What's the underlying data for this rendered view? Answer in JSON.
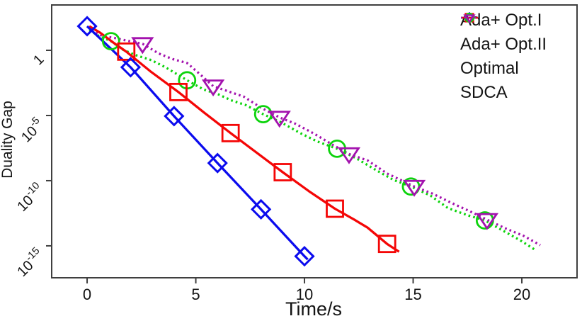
{
  "figure": {
    "background": "#ffffff",
    "frame_color": "#3f3f3f",
    "text_color": "#141414"
  },
  "chart_data": {
    "type": "line",
    "title": "",
    "xlabel": "Time/s",
    "ylabel": "Duality Gap",
    "grid": false,
    "legend_position": "top-right-inside",
    "x_axis": {
      "min": -1.63,
      "max": 22.54,
      "ticks": [
        0,
        5,
        10,
        15,
        20
      ]
    },
    "y_axis": {
      "scale": "log10",
      "max_log": 3.48,
      "min_log": -17.45,
      "ticks": [
        {
          "base": "1",
          "exp": "",
          "log": 0
        },
        {
          "base": "10",
          "exp": "-5",
          "log": -5
        },
        {
          "base": "10",
          "exp": "-10",
          "log": -10
        },
        {
          "base": "10",
          "exp": "-15",
          "log": -15
        }
      ]
    },
    "series": [
      {
        "id": "ada-opt-1",
        "name": "Ada+ Opt.I",
        "color": "#0b0bee",
        "line_style": "solid",
        "marker": "diamond",
        "markers_t_log10": [
          [
            0,
            1.85
          ],
          [
            2,
            -1.3
          ],
          [
            4,
            -5.05
          ],
          [
            6,
            -8.65
          ],
          [
            8,
            -12.2
          ],
          [
            10,
            -15.8
          ]
        ],
        "line_t_log10": [
          [
            0,
            1.85
          ],
          [
            2,
            -1.3
          ],
          [
            4,
            -5.05
          ],
          [
            6,
            -8.65
          ],
          [
            8,
            -12.2
          ],
          [
            10,
            -15.8
          ],
          [
            10.15,
            -16.05
          ]
        ]
      },
      {
        "id": "ada-opt-2",
        "name": "Ada+ Opt.II",
        "color": "#f40606",
        "line_style": "solid",
        "marker": "square",
        "markers_t_log10": [
          [
            1.8,
            -0.1
          ],
          [
            4.2,
            -3.2
          ],
          [
            6.6,
            -6.35
          ],
          [
            9.0,
            -9.35
          ],
          [
            11.4,
            -12.15
          ],
          [
            13.8,
            -14.85
          ]
        ],
        "line_t_log10": [
          [
            0.1,
            1.85
          ],
          [
            0.6,
            1.35
          ],
          [
            1.2,
            0.6
          ],
          [
            1.8,
            -0.1
          ],
          [
            2.9,
            -1.6
          ],
          [
            4.2,
            -3.2
          ],
          [
            5.4,
            -4.8
          ],
          [
            6.6,
            -6.35
          ],
          [
            7.8,
            -7.85
          ],
          [
            9.0,
            -9.35
          ],
          [
            10.2,
            -10.8
          ],
          [
            11.4,
            -12.15
          ],
          [
            12.3,
            -13.0
          ],
          [
            12.9,
            -13.6
          ],
          [
            13.8,
            -14.85
          ],
          [
            14.35,
            -15.45
          ]
        ]
      },
      {
        "id": "optimal",
        "name": "Optimal",
        "color": "#0cd30c",
        "line_style": "dotted",
        "marker": "circle",
        "markers_t_log10": [
          [
            1.1,
            0.7
          ],
          [
            4.6,
            -2.3
          ],
          [
            8.1,
            -4.9
          ],
          [
            11.5,
            -7.55
          ],
          [
            14.9,
            -10.45
          ],
          [
            18.3,
            -13.05
          ]
        ],
        "line_t_log10": [
          [
            0.1,
            1.55
          ],
          [
            0.55,
            1.1
          ],
          [
            1.1,
            0.7
          ],
          [
            1.65,
            0.05
          ],
          [
            2.2,
            -0.35
          ],
          [
            2.95,
            -0.75
          ],
          [
            3.6,
            -1.3
          ],
          [
            4.6,
            -2.3
          ],
          [
            5.35,
            -3.0
          ],
          [
            6.0,
            -3.35
          ],
          [
            6.65,
            -3.85
          ],
          [
            7.3,
            -4.2
          ],
          [
            8.1,
            -4.9
          ],
          [
            8.9,
            -5.5
          ],
          [
            9.8,
            -6.35
          ],
          [
            10.6,
            -7.0
          ],
          [
            11.5,
            -7.55
          ],
          [
            12.4,
            -8.3
          ],
          [
            13.2,
            -9.1
          ],
          [
            14.1,
            -9.95
          ],
          [
            14.9,
            -10.45
          ],
          [
            15.8,
            -11.15
          ],
          [
            16.6,
            -12.1
          ],
          [
            17.5,
            -12.65
          ],
          [
            18.3,
            -13.05
          ],
          [
            19.2,
            -13.9
          ],
          [
            20.0,
            -14.65
          ],
          [
            20.65,
            -15.35
          ]
        ]
      },
      {
        "id": "sdca",
        "name": "SDCA",
        "color": "#a312ae",
        "line_style": "dotted",
        "marker": "triangle-down",
        "markers_t_log10": [
          [
            2.55,
            0.5
          ],
          [
            5.8,
            -2.75
          ],
          [
            8.85,
            -5.15
          ],
          [
            12.05,
            -7.95
          ],
          [
            15.05,
            -10.45
          ],
          [
            18.4,
            -13.0
          ]
        ],
        "line_t_log10": [
          [
            0.2,
            1.5
          ],
          [
            0.7,
            1.1
          ],
          [
            1.25,
            0.95
          ],
          [
            1.9,
            0.72
          ],
          [
            2.55,
            0.5
          ],
          [
            3.3,
            -0.25
          ],
          [
            3.95,
            -0.68
          ],
          [
            4.6,
            -0.98
          ],
          [
            5.2,
            -1.85
          ],
          [
            5.8,
            -2.75
          ],
          [
            6.5,
            -3.15
          ],
          [
            7.2,
            -3.55
          ],
          [
            8.0,
            -4.4
          ],
          [
            8.85,
            -5.15
          ],
          [
            9.6,
            -5.65
          ],
          [
            10.45,
            -6.4
          ],
          [
            11.3,
            -7.25
          ],
          [
            12.05,
            -7.95
          ],
          [
            12.9,
            -8.45
          ],
          [
            13.8,
            -9.45
          ],
          [
            15.05,
            -10.45
          ],
          [
            15.9,
            -11.0
          ],
          [
            16.75,
            -11.7
          ],
          [
            17.55,
            -12.3
          ],
          [
            18.4,
            -13.0
          ],
          [
            19.3,
            -13.7
          ],
          [
            20.1,
            -14.25
          ],
          [
            20.85,
            -14.95
          ]
        ]
      }
    ]
  }
}
